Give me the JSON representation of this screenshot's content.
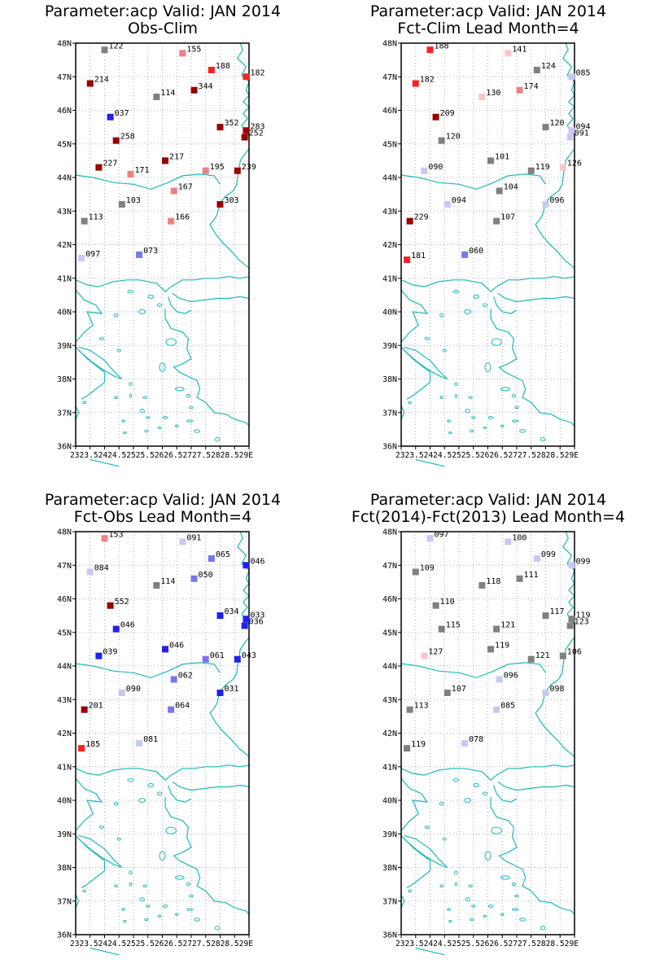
{
  "panels": [
    {
      "title1": "Parameter:acp Valid: JAN 2014",
      "title2": "Obs-Clim",
      "stations": [
        {
          "lon": 24.0,
          "lat": 47.8,
          "label": "122",
          "color": "#808080"
        },
        {
          "lon": 26.7,
          "lat": 47.7,
          "label": "155",
          "color": "#f08080"
        },
        {
          "lon": 27.7,
          "lat": 47.2,
          "label": "188",
          "color": "#ff2020"
        },
        {
          "lon": 28.9,
          "lat": 47.0,
          "label": "182",
          "color": "#ff2020"
        },
        {
          "lon": 23.5,
          "lat": 46.8,
          "label": "214",
          "color": "#990000"
        },
        {
          "lon": 27.1,
          "lat": 46.6,
          "label": "344",
          "color": "#990000"
        },
        {
          "lon": 25.8,
          "lat": 46.4,
          "label": "114",
          "color": "#808080"
        },
        {
          "lon": 24.2,
          "lat": 45.8,
          "label": "037",
          "color": "#2020ee"
        },
        {
          "lon": 28.0,
          "lat": 45.5,
          "label": "352",
          "color": "#990000"
        },
        {
          "lon": 28.9,
          "lat": 45.4,
          "label": "283",
          "color": "#990000"
        },
        {
          "lon": 28.85,
          "lat": 45.2,
          "label": "252",
          "color": "#990000"
        },
        {
          "lon": 24.4,
          "lat": 45.1,
          "label": "258",
          "color": "#990000"
        },
        {
          "lon": 26.1,
          "lat": 44.5,
          "label": "217",
          "color": "#990000"
        },
        {
          "lon": 23.8,
          "lat": 44.3,
          "label": "227",
          "color": "#990000"
        },
        {
          "lon": 24.9,
          "lat": 44.1,
          "label": "171",
          "color": "#f08080"
        },
        {
          "lon": 27.5,
          "lat": 44.2,
          "label": "195",
          "color": "#f08080"
        },
        {
          "lon": 28.6,
          "lat": 44.2,
          "label": "239",
          "color": "#990000"
        },
        {
          "lon": 26.4,
          "lat": 43.6,
          "label": "167",
          "color": "#f08080"
        },
        {
          "lon": 28.0,
          "lat": 43.2,
          "label": "303",
          "color": "#990000"
        },
        {
          "lon": 24.6,
          "lat": 43.2,
          "label": "103",
          "color": "#808080"
        },
        {
          "lon": 23.3,
          "lat": 42.7,
          "label": "113",
          "color": "#808080"
        },
        {
          "lon": 26.3,
          "lat": 42.7,
          "label": "166",
          "color": "#f08080"
        },
        {
          "lon": 25.2,
          "lat": 41.7,
          "label": "073",
          "color": "#7777ee"
        },
        {
          "lon": 23.2,
          "lat": 41.6,
          "label": "097",
          "color": "#c8c8f4"
        }
      ]
    },
    {
      "title1": "Parameter:acp Valid: JAN 2014",
      "title2": "Fct-Clim Lead Month=4",
      "stations": [
        {
          "lon": 24.0,
          "lat": 47.8,
          "label": "188",
          "color": "#ff2020"
        },
        {
          "lon": 26.7,
          "lat": 47.7,
          "label": "141",
          "color": "#f4c8c8"
        },
        {
          "lon": 27.7,
          "lat": 47.2,
          "label": "124",
          "color": "#808080"
        },
        {
          "lon": 28.9,
          "lat": 47.0,
          "label": "085",
          "color": "#c8c8f4"
        },
        {
          "lon": 23.5,
          "lat": 46.8,
          "label": "182",
          "color": "#ff2020"
        },
        {
          "lon": 27.1,
          "lat": 46.6,
          "label": "174",
          "color": "#f08080"
        },
        {
          "lon": 25.8,
          "lat": 46.4,
          "label": "130",
          "color": "#f4c8c8"
        },
        {
          "lon": 24.2,
          "lat": 45.8,
          "label": "209",
          "color": "#990000"
        },
        {
          "lon": 28.0,
          "lat": 45.5,
          "label": "120",
          "color": "#808080"
        },
        {
          "lon": 28.9,
          "lat": 45.4,
          "label": "094",
          "color": "#c8c8f4"
        },
        {
          "lon": 28.85,
          "lat": 45.2,
          "label": "091",
          "color": "#c8c8f4"
        },
        {
          "lon": 24.4,
          "lat": 45.1,
          "label": "120",
          "color": "#808080"
        },
        {
          "lon": 26.1,
          "lat": 44.5,
          "label": "101",
          "color": "#808080"
        },
        {
          "lon": 23.8,
          "lat": 44.2,
          "label": "090",
          "color": "#c8c8f4"
        },
        {
          "lon": 27.5,
          "lat": 44.2,
          "label": "119",
          "color": "#808080"
        },
        {
          "lon": 28.6,
          "lat": 44.3,
          "label": "126",
          "color": "#f4c8c8"
        },
        {
          "lon": 26.4,
          "lat": 43.6,
          "label": "104",
          "color": "#808080"
        },
        {
          "lon": 28.0,
          "lat": 43.2,
          "label": "096",
          "color": "#c8c8f4"
        },
        {
          "lon": 24.6,
          "lat": 43.2,
          "label": "094",
          "color": "#c8c8f4"
        },
        {
          "lon": 23.3,
          "lat": 42.7,
          "label": "229",
          "color": "#990000"
        },
        {
          "lon": 26.3,
          "lat": 42.7,
          "label": "107",
          "color": "#808080"
        },
        {
          "lon": 25.2,
          "lat": 41.7,
          "label": "060",
          "color": "#7777ee"
        },
        {
          "lon": 23.2,
          "lat": 41.55,
          "label": "181",
          "color": "#ff2020"
        }
      ]
    },
    {
      "title1": "Parameter:acp Valid: JAN 2014",
      "title2": "Fct-Obs Lead Month=4",
      "stations": [
        {
          "lon": 24.0,
          "lat": 47.8,
          "label": "153",
          "color": "#f08080"
        },
        {
          "lon": 26.7,
          "lat": 47.7,
          "label": "091",
          "color": "#c8c8f4"
        },
        {
          "lon": 27.7,
          "lat": 47.2,
          "label": "065",
          "color": "#7777ee"
        },
        {
          "lon": 28.9,
          "lat": 47.0,
          "label": "046",
          "color": "#2020ee"
        },
        {
          "lon": 23.5,
          "lat": 46.8,
          "label": "084",
          "color": "#c8c8f4"
        },
        {
          "lon": 27.1,
          "lat": 46.6,
          "label": "050",
          "color": "#7777ee"
        },
        {
          "lon": 25.8,
          "lat": 46.4,
          "label": "114",
          "color": "#808080"
        },
        {
          "lon": 24.2,
          "lat": 45.8,
          "label": "552",
          "color": "#990000"
        },
        {
          "lon": 28.0,
          "lat": 45.5,
          "label": "034",
          "color": "#2020ee"
        },
        {
          "lon": 28.9,
          "lat": 45.4,
          "label": "033",
          "color": "#2020ee"
        },
        {
          "lon": 28.85,
          "lat": 45.2,
          "label": "036",
          "color": "#2020ee"
        },
        {
          "lon": 24.4,
          "lat": 45.1,
          "label": "046",
          "color": "#2020ee"
        },
        {
          "lon": 26.1,
          "lat": 44.5,
          "label": "046",
          "color": "#2020ee"
        },
        {
          "lon": 23.8,
          "lat": 44.3,
          "label": "039",
          "color": "#2020ee"
        },
        {
          "lon": 27.5,
          "lat": 44.2,
          "label": "061",
          "color": "#7777ee"
        },
        {
          "lon": 28.6,
          "lat": 44.2,
          "label": "043",
          "color": "#2020ee"
        },
        {
          "lon": 26.4,
          "lat": 43.6,
          "label": "062",
          "color": "#7777ee"
        },
        {
          "lon": 28.0,
          "lat": 43.2,
          "label": "031",
          "color": "#2020ee"
        },
        {
          "lon": 24.6,
          "lat": 43.2,
          "label": "090",
          "color": "#c8c8f4"
        },
        {
          "lon": 23.3,
          "lat": 42.7,
          "label": "201",
          "color": "#990000"
        },
        {
          "lon": 26.3,
          "lat": 42.7,
          "label": "064",
          "color": "#7777ee"
        },
        {
          "lon": 25.2,
          "lat": 41.7,
          "label": "081",
          "color": "#c8c8f4"
        },
        {
          "lon": 23.2,
          "lat": 41.55,
          "label": "185",
          "color": "#ff2020"
        }
      ]
    },
    {
      "title1": "Parameter:acp Valid: JAN 2014",
      "title2": "Fct(2014)-Fct(2013) Lead Month=4",
      "stations": [
        {
          "lon": 24.0,
          "lat": 47.8,
          "label": "097",
          "color": "#c8c8f4"
        },
        {
          "lon": 26.7,
          "lat": 47.7,
          "label": "100",
          "color": "#c8c8f4"
        },
        {
          "lon": 27.7,
          "lat": 47.2,
          "label": "099",
          "color": "#c8c8f4"
        },
        {
          "lon": 28.9,
          "lat": 47.0,
          "label": "099",
          "color": "#c8c8f4"
        },
        {
          "lon": 23.5,
          "lat": 46.8,
          "label": "109",
          "color": "#808080"
        },
        {
          "lon": 27.1,
          "lat": 46.6,
          "label": "111",
          "color": "#808080"
        },
        {
          "lon": 25.8,
          "lat": 46.4,
          "label": "118",
          "color": "#808080"
        },
        {
          "lon": 24.2,
          "lat": 45.8,
          "label": "110",
          "color": "#808080"
        },
        {
          "lon": 28.0,
          "lat": 45.5,
          "label": "117",
          "color": "#808080"
        },
        {
          "lon": 28.9,
          "lat": 45.4,
          "label": "119",
          "color": "#808080"
        },
        {
          "lon": 28.85,
          "lat": 45.2,
          "label": "123",
          "color": "#808080"
        },
        {
          "lon": 24.4,
          "lat": 45.1,
          "label": "115",
          "color": "#808080"
        },
        {
          "lon": 26.3,
          "lat": 45.1,
          "label": "121",
          "color": "#808080"
        },
        {
          "lon": 26.1,
          "lat": 44.5,
          "label": "119",
          "color": "#808080"
        },
        {
          "lon": 23.8,
          "lat": 44.3,
          "label": "127",
          "color": "#f4c8c8"
        },
        {
          "lon": 27.5,
          "lat": 44.2,
          "label": "121",
          "color": "#808080"
        },
        {
          "lon": 28.6,
          "lat": 44.3,
          "label": "106",
          "color": "#808080"
        },
        {
          "lon": 26.4,
          "lat": 43.6,
          "label": "096",
          "color": "#c8c8f4"
        },
        {
          "lon": 28.0,
          "lat": 43.2,
          "label": "098",
          "color": "#c8c8f4"
        },
        {
          "lon": 24.6,
          "lat": 43.2,
          "label": "107",
          "color": "#808080"
        },
        {
          "lon": 23.3,
          "lat": 42.7,
          "label": "113",
          "color": "#808080"
        },
        {
          "lon": 26.3,
          "lat": 42.7,
          "label": "085",
          "color": "#c8c8f4"
        },
        {
          "lon": 25.2,
          "lat": 41.7,
          "label": "078",
          "color": "#c8c8f4"
        },
        {
          "lon": 23.2,
          "lat": 41.55,
          "label": "119",
          "color": "#808080"
        }
      ]
    }
  ],
  "axes": {
    "lon_min": 23,
    "lon_max": 29,
    "lat_min": 36,
    "lat_max": 48,
    "lat_ticks": [
      "36N",
      "37N",
      "38N",
      "39N",
      "40N",
      "41N",
      "42N",
      "43N",
      "44N",
      "45N",
      "46N",
      "47N",
      "48N"
    ],
    "lon_tick_text": "2323.52424.52525.52626.52727.52828.529E",
    "grid": "dotted"
  },
  "colors": {
    "coast": "#20b8b8",
    "frame": "#000000",
    "grid": "#999999"
  }
}
